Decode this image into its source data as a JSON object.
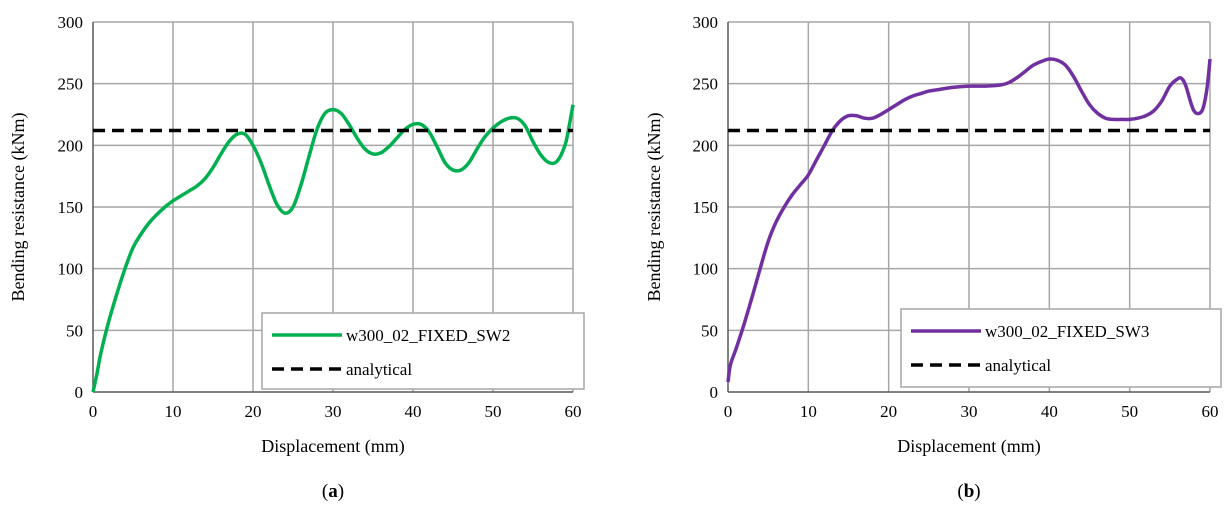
{
  "chart_data": [
    {
      "type": "line",
      "panel_label": {
        "open": "(",
        "letter": "a",
        "close": ")"
      },
      "xlabel": "Displacement (mm)",
      "ylabel": "Bending resistance (kNm)",
      "xlim": [
        0,
        60
      ],
      "ylim": [
        0,
        300
      ],
      "xticks": [
        0,
        10,
        20,
        30,
        40,
        50,
        60
      ],
      "yticks": [
        0,
        50,
        100,
        150,
        200,
        250,
        300
      ],
      "grid": true,
      "legend_position": "bottom-right",
      "series": [
        {
          "name": "w300_02_FIXED_SW2",
          "color": "#00b050",
          "style": "solid",
          "x": [
            0,
            0.5,
            1,
            2,
            3,
            4,
            5,
            6,
            7,
            8,
            9,
            10,
            11,
            12,
            13,
            14,
            15,
            16,
            17,
            18,
            19,
            20,
            21,
            22,
            23,
            24,
            25,
            26,
            27,
            28,
            29,
            30,
            31,
            32,
            33,
            34,
            35,
            36,
            37,
            38,
            39,
            40,
            41,
            42,
            43,
            44,
            45,
            46,
            47,
            48,
            49,
            50,
            51,
            52,
            53,
            54,
            55,
            56,
            57,
            58,
            59,
            59.5,
            60
          ],
          "y": [
            0,
            15,
            32,
            58,
            80,
            100,
            117,
            128,
            137,
            144,
            150,
            155,
            159,
            163,
            167,
            173,
            182,
            193,
            203,
            209,
            209,
            200,
            186,
            168,
            152,
            145,
            150,
            168,
            191,
            213,
            226,
            229,
            226,
            217,
            206,
            197,
            193,
            194,
            199,
            206,
            213,
            217,
            217,
            211,
            199,
            186,
            180,
            180,
            186,
            197,
            207,
            214,
            219,
            222,
            222,
            216,
            203,
            192,
            186,
            187,
            200,
            215,
            233
          ]
        },
        {
          "name": "analytical",
          "color": "#000000",
          "style": "dashed",
          "x": [
            0,
            60
          ],
          "y": [
            212,
            212
          ]
        }
      ]
    },
    {
      "type": "line",
      "panel_label": {
        "open": "(",
        "letter": "b",
        "close": ")"
      },
      "xlabel": "Displacement (mm)",
      "ylabel": "Bending resistance (kNm)",
      "xlim": [
        0,
        60
      ],
      "ylim": [
        0,
        300
      ],
      "xticks": [
        0,
        10,
        20,
        30,
        40,
        50,
        60
      ],
      "yticks": [
        0,
        50,
        100,
        150,
        200,
        250,
        300
      ],
      "grid": true,
      "legend_position": "bottom-right",
      "series": [
        {
          "name": "w300_02_FIXED_SW3",
          "color": "#7030a0",
          "style": "solid",
          "x": [
            0,
            0.3,
            1,
            2,
            3,
            4,
            5,
            6,
            7,
            8,
            9,
            10,
            11,
            12,
            13,
            14,
            15,
            16,
            17,
            18,
            19,
            20,
            21,
            22,
            23,
            24,
            25,
            26,
            28,
            30,
            32,
            34,
            35,
            36,
            37,
            38,
            39,
            40,
            41,
            42,
            43,
            44,
            45,
            46,
            47,
            48,
            49,
            50,
            51,
            52,
            53,
            54,
            55,
            56,
            56.5,
            57,
            58,
            59,
            59.6,
            60
          ],
          "y": [
            8,
            22,
            35,
            55,
            77,
            100,
            122,
            138,
            150,
            160,
            168,
            176,
            188,
            200,
            212,
            220,
            224,
            224,
            222,
            222,
            225,
            229,
            233,
            237,
            240,
            242,
            244,
            245,
            247,
            248,
            248,
            249,
            251,
            255,
            260,
            265,
            268,
            270,
            269,
            265,
            256,
            244,
            233,
            226,
            222,
            221,
            221,
            221,
            222,
            224,
            228,
            236,
            248,
            254,
            254,
            248,
            228,
            228,
            245,
            270
          ]
        },
        {
          "name": "analytical",
          "color": "#000000",
          "style": "dashed",
          "x": [
            0,
            60
          ],
          "y": [
            212,
            212
          ]
        }
      ]
    }
  ]
}
